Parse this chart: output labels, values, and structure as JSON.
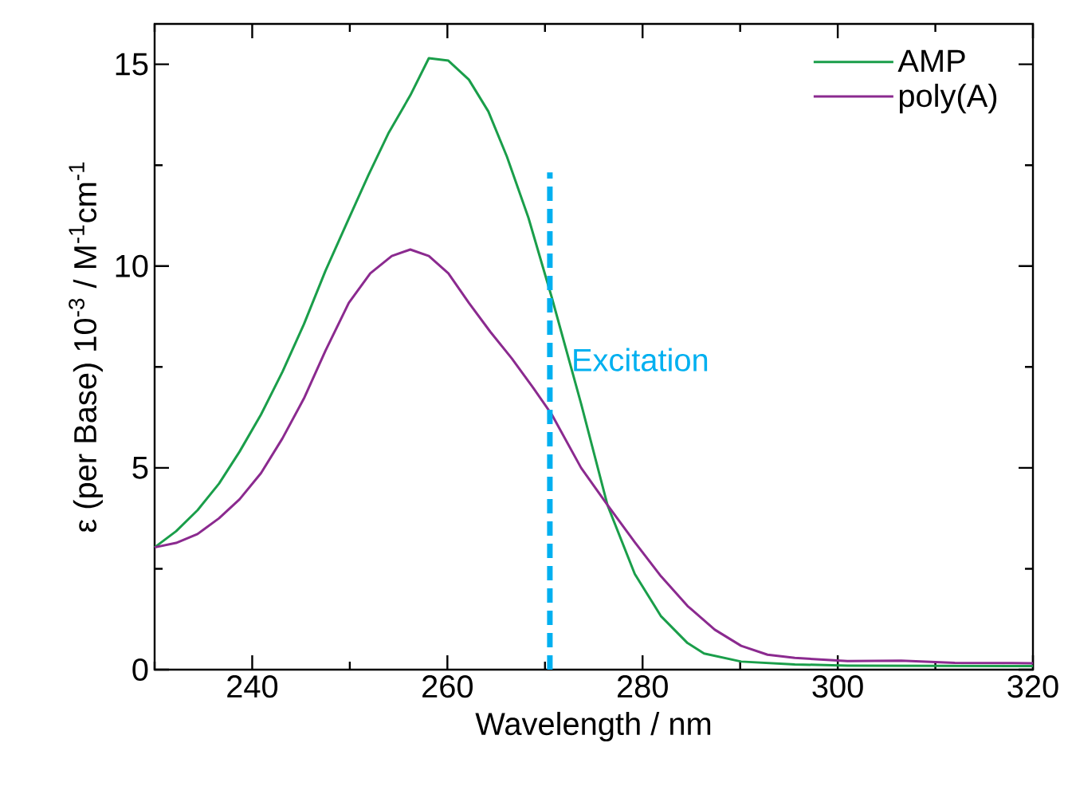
{
  "chart_data": {
    "type": "line",
    "xlabel": "Wavelength / nm",
    "ylabel": "ε (per Base) 10$^{-3}$ / M$^{-1}$cm$^{-1}$",
    "xlim": [
      230,
      320
    ],
    "ylim": [
      0,
      16
    ],
    "xticks": [
      {
        "value": 230,
        "label": null
      },
      240,
      {
        "value": 250,
        "label": null
      },
      260,
      {
        "value": 270,
        "label": null
      },
      280,
      {
        "value": 290,
        "label": null
      },
      300,
      {
        "value": 310,
        "label": null
      },
      320
    ],
    "yticks": [
      0,
      {
        "value": 2.5,
        "label": null
      },
      5,
      {
        "value": 7.5,
        "label": null
      },
      10,
      {
        "value": 12.5,
        "label": null
      },
      15
    ],
    "legend": "top right",
    "line_style": "solid",
    "marker": "none",
    "ref_lines": [
      {
        "axis": "x",
        "value": 270.5,
        "label": "Excitation",
        "color": "#00b0f0",
        "line_style": "dashed"
      }
    ],
    "series": [
      {
        "name": "AMP",
        "color": "#1a9e4a",
        "x": [
          230,
          232.2,
          234.4,
          236.6,
          238.7,
          240.9,
          243.1,
          245.3,
          247.5,
          249.7,
          251.9,
          254.0,
          256.2,
          258.1,
          260.1,
          262.2,
          264.2,
          266.1,
          268.3,
          270.7,
          273.7,
          276.4,
          279.2,
          281.9,
          284.6,
          286.3,
          290.1,
          295.6,
          301,
          320
        ],
        "values": [
          3.03,
          3.43,
          3.95,
          4.61,
          5.4,
          6.32,
          7.38,
          8.56,
          9.88,
          11.07,
          12.25,
          13.31,
          14.23,
          15.15,
          15.09,
          14.62,
          13.83,
          12.71,
          11.2,
          9.22,
          6.59,
          4.08,
          2.37,
          1.32,
          0.66,
          0.4,
          0.2,
          0.13,
          0.1,
          0.09
        ]
      },
      {
        "name": "poly(A)",
        "color": "#8b2a8f",
        "x": [
          230,
          232.2,
          234.4,
          236.6,
          238.7,
          240.9,
          243.1,
          245.3,
          247.5,
          249.9,
          252.1,
          254.3,
          256.2,
          258.1,
          260.1,
          262.2,
          264.4,
          266.6,
          268.8,
          270.7,
          273.7,
          276.4,
          279.2,
          281.9,
          284.6,
          287.4,
          290.1,
          292.8,
          295.6,
          301,
          306.5,
          312,
          320
        ],
        "values": [
          3.03,
          3.14,
          3.36,
          3.75,
          4.22,
          4.87,
          5.73,
          6.72,
          7.9,
          9.09,
          9.82,
          10.25,
          10.41,
          10.25,
          9.82,
          9.09,
          8.37,
          7.71,
          6.98,
          6.32,
          5.0,
          4.08,
          3.16,
          2.31,
          1.58,
          0.99,
          0.59,
          0.37,
          0.29,
          0.21,
          0.22,
          0.17,
          0.16
        ]
      }
    ]
  }
}
